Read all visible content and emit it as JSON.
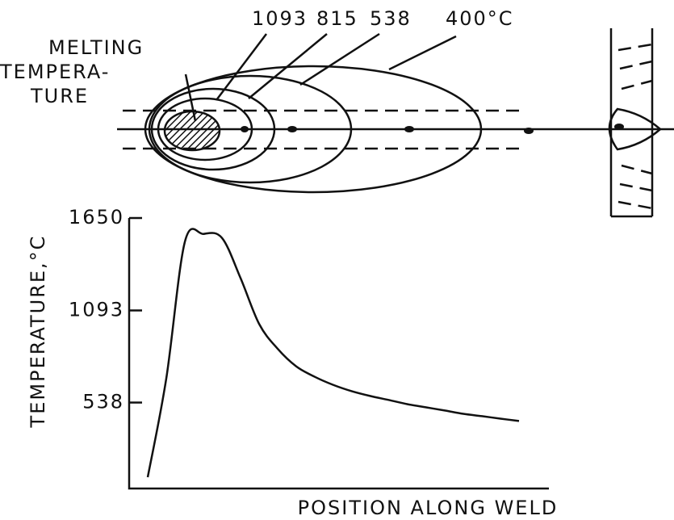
{
  "diagram": {
    "isotherm_labels": [
      "1093",
      "815",
      "538",
      "400°C"
    ],
    "melting_label": [
      "MELTING",
      "TEMPERA-",
      "TURE"
    ]
  },
  "chart_data": {
    "type": "line",
    "y_label": "TEMPERATURE,°C",
    "x_label": "POSITION ALONG WELD",
    "categories": [
      null,
      null,
      null,
      null,
      null,
      null,
      null,
      null,
      null,
      null,
      null,
      null,
      null,
      null,
      null,
      null,
      null,
      null,
      null,
      null,
      null
    ],
    "values": [
      88,
      683,
      1506,
      1554,
      1530,
      1288,
      1012,
      862,
      756,
      693,
      644,
      606,
      577,
      553,
      528,
      509,
      490,
      470,
      456,
      441,
      427
    ],
    "color": "#111111",
    "ylim": [
      20,
      1650
    ],
    "yticks": [
      538,
      1093,
      1650
    ]
  }
}
